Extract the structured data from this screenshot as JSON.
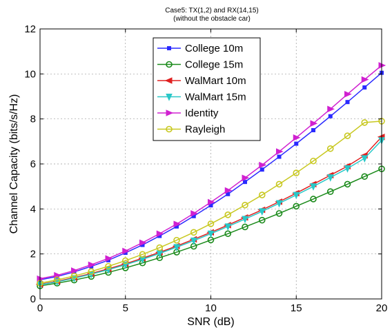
{
  "chart_data": {
    "type": "line",
    "title": [
      "Case5: TX(1,2) and RX(14,15)",
      "(without the obstacle car)"
    ],
    "xlabel": "SNR (dB)",
    "ylabel": "Channel Capacity (bits/s/Hz)",
    "xlim": [
      0,
      20
    ],
    "ylim": [
      0,
      12
    ],
    "xticks": [
      0,
      5,
      10,
      15,
      20
    ],
    "yticks": [
      0,
      2,
      4,
      6,
      8,
      10,
      12
    ],
    "grid": true,
    "legend_position": "top-center",
    "x": [
      0,
      1,
      2,
      3,
      4,
      5,
      6,
      7,
      8,
      9,
      10,
      11,
      12,
      13,
      14,
      15,
      16,
      17,
      18,
      19,
      20
    ],
    "series": [
      {
        "name": "College 10m",
        "color": "#2a2aff",
        "marker": "square",
        "values": [
          0.85,
          1.0,
          1.2,
          1.45,
          1.72,
          2.05,
          2.4,
          2.8,
          3.22,
          3.68,
          4.16,
          4.66,
          5.2,
          5.75,
          6.32,
          6.9,
          7.5,
          8.12,
          8.75,
          9.4,
          10.05
        ]
      },
      {
        "name": "College 15m",
        "color": "#1a8a1a",
        "marker": "circle",
        "values": [
          0.58,
          0.7,
          0.84,
          1.0,
          1.18,
          1.38,
          1.6,
          1.83,
          2.08,
          2.34,
          2.62,
          2.9,
          3.2,
          3.5,
          3.8,
          4.12,
          4.44,
          4.77,
          5.1,
          5.44,
          5.78
        ]
      },
      {
        "name": "WalMart 10m",
        "color": "#e02020",
        "marker": "triangle-left",
        "values": [
          0.65,
          0.78,
          0.95,
          1.13,
          1.34,
          1.56,
          1.81,
          2.07,
          2.35,
          2.65,
          2.96,
          3.28,
          3.62,
          3.96,
          4.32,
          4.7,
          5.1,
          5.5,
          5.9,
          6.38,
          7.2
        ]
      },
      {
        "name": "WalMart 15m",
        "color": "#2ac8c8",
        "marker": "triangle-down",
        "values": [
          0.63,
          0.76,
          0.92,
          1.1,
          1.3,
          1.52,
          1.76,
          2.02,
          2.3,
          2.59,
          2.9,
          3.22,
          3.55,
          3.89,
          4.25,
          4.62,
          5.0,
          5.4,
          5.8,
          6.25,
          7.05
        ]
      },
      {
        "name": "Identity",
        "color": "#d020d0",
        "marker": "triangle-right",
        "values": [
          0.9,
          1.05,
          1.26,
          1.52,
          1.8,
          2.13,
          2.5,
          2.9,
          3.33,
          3.8,
          4.3,
          4.82,
          5.38,
          5.95,
          6.55,
          7.17,
          7.8,
          8.44,
          9.1,
          9.75,
          10.38
        ]
      },
      {
        "name": "Rayleigh",
        "color": "#c8c820",
        "marker": "circle",
        "values": [
          0.7,
          0.85,
          1.02,
          1.22,
          1.45,
          1.7,
          1.98,
          2.28,
          2.61,
          2.96,
          3.34,
          3.74,
          4.17,
          4.62,
          5.1,
          5.6,
          6.13,
          6.68,
          7.25,
          7.84,
          7.9
        ]
      }
    ]
  }
}
